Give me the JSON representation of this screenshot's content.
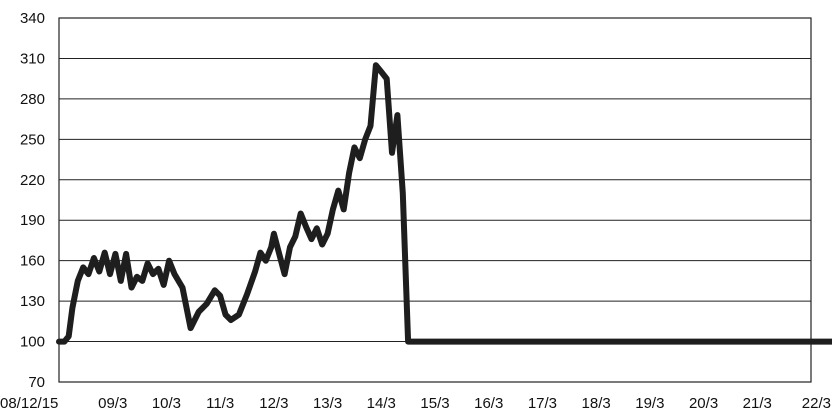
{
  "chart_data": {
    "type": "line",
    "title": "",
    "xlabel": "",
    "ylabel": "",
    "grid": true,
    "ylim": [
      70,
      340
    ],
    "y_ticks": [
      70,
      100,
      130,
      160,
      190,
      220,
      250,
      280,
      310,
      340
    ],
    "x_tick_labels": [
      "08/12/15",
      "09/3",
      "10/3",
      "11/3",
      "12/3",
      "13/3",
      "14/3",
      "15/3",
      "16/3",
      "17/3",
      "18/3",
      "19/3",
      "20/3",
      "21/3",
      "22/3"
    ],
    "series": [
      {
        "color": "#1e1e1e",
        "x": [
          0,
          0.1,
          0.18,
          0.25,
          0.35,
          0.45,
          0.55,
          0.65,
          0.75,
          0.85,
          0.95,
          1.05,
          1.15,
          1.25,
          1.35,
          1.45,
          1.55,
          1.65,
          1.75,
          1.85,
          1.95,
          2.05,
          2.15,
          2.3,
          2.45,
          2.6,
          2.75,
          2.9,
          3.0,
          3.1,
          3.2,
          3.35,
          3.5,
          3.65,
          3.75,
          3.85,
          3.95,
          4.0,
          4.1,
          4.2,
          4.3,
          4.4,
          4.5,
          4.6,
          4.7,
          4.8,
          4.9,
          5.0,
          5.1,
          5.2,
          5.3,
          5.4,
          5.5,
          5.6,
          5.7,
          5.8,
          5.9,
          6.0,
          6.1,
          6.2,
          6.3,
          6.4,
          6.5,
          6.6,
          6.7,
          6.8,
          6.9,
          7.0,
          7.06,
          7.12,
          7.18,
          7.24,
          7.3,
          7.36,
          7.42,
          7.46,
          7.5,
          7.52,
          7.54,
          7.56,
          7.58,
          7.6,
          8.0,
          9.0,
          10.0,
          11.0,
          12.0,
          13.0,
          14.0,
          14.95
        ],
        "y": [
          100,
          100,
          104,
          125,
          145,
          155,
          150,
          162,
          152,
          166,
          150,
          165,
          145,
          165,
          140,
          148,
          145,
          158,
          150,
          154,
          142,
          160,
          150,
          140,
          110,
          122,
          128,
          138,
          134,
          120,
          116,
          120,
          135,
          152,
          166,
          160,
          170,
          180,
          165,
          150,
          170,
          178,
          195,
          185,
          176,
          184,
          172,
          180,
          198,
          212,
          198,
          225,
          244,
          236,
          250,
          260,
          305,
          300,
          295,
          240,
          268,
          210,
          100,
          100,
          100,
          100,
          100,
          100,
          100,
          100,
          100,
          100,
          100,
          100,
          100,
          100,
          100,
          100,
          100,
          100,
          100,
          100,
          100,
          100,
          100,
          100,
          100,
          100,
          100,
          100
        ]
      }
    ]
  }
}
